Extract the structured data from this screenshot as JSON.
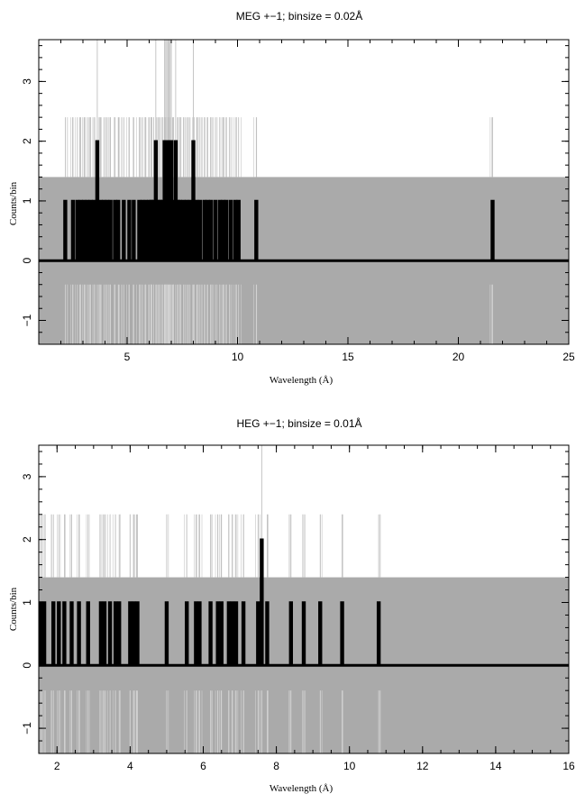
{
  "chart_data": [
    {
      "type": "line",
      "title": "MEG +−1; binsize = 0.02Å",
      "xlabel": "Wavelength (Å)",
      "ylabel": "Counts/bin",
      "xlim": [
        1.0,
        25.0
      ],
      "ylim": [
        -1.4,
        3.7
      ],
      "xticks": [
        5,
        10,
        15,
        20,
        25
      ],
      "yticks": [
        -1,
        0,
        1,
        2,
        3
      ],
      "ytick_labels": [
        "−1",
        "0",
        "1",
        "2",
        "3"
      ],
      "error_band": [
        -1.4,
        1.4
      ],
      "error_band_color": "#aaaaaa",
      "data_color": "#000000",
      "spikes": [
        {
          "x": 2.2,
          "y": 1
        },
        {
          "x": 2.55,
          "y": 1
        },
        {
          "x": 2.75,
          "y": 1
        },
        {
          "x": 2.9,
          "y": 1
        },
        {
          "x": 3.05,
          "y": 1
        },
        {
          "x": 3.2,
          "y": 1
        },
        {
          "x": 3.35,
          "y": 1
        },
        {
          "x": 3.5,
          "y": 1
        },
        {
          "x": 3.65,
          "y": 2
        },
        {
          "x": 3.8,
          "y": 1
        },
        {
          "x": 3.95,
          "y": 1
        },
        {
          "x": 4.1,
          "y": 1
        },
        {
          "x": 4.25,
          "y": 1
        },
        {
          "x": 4.45,
          "y": 1
        },
        {
          "x": 4.6,
          "y": 1
        },
        {
          "x": 4.85,
          "y": 1
        },
        {
          "x": 5.1,
          "y": 1
        },
        {
          "x": 5.3,
          "y": 1
        },
        {
          "x": 5.55,
          "y": 1
        },
        {
          "x": 5.7,
          "y": 1
        },
        {
          "x": 5.85,
          "y": 1
        },
        {
          "x": 6.0,
          "y": 1
        },
        {
          "x": 6.1,
          "y": 1
        },
        {
          "x": 6.2,
          "y": 1
        },
        {
          "x": 6.3,
          "y": 2
        },
        {
          "x": 6.4,
          "y": 1
        },
        {
          "x": 6.5,
          "y": 1
        },
        {
          "x": 6.6,
          "y": 1
        },
        {
          "x": 6.7,
          "y": 2
        },
        {
          "x": 6.75,
          "y": 2
        },
        {
          "x": 6.8,
          "y": 2
        },
        {
          "x": 6.85,
          "y": 2
        },
        {
          "x": 6.9,
          "y": 2
        },
        {
          "x": 6.95,
          "y": 2
        },
        {
          "x": 7.0,
          "y": 2
        },
        {
          "x": 7.1,
          "y": 1
        },
        {
          "x": 7.2,
          "y": 2
        },
        {
          "x": 7.3,
          "y": 1
        },
        {
          "x": 7.4,
          "y": 1
        },
        {
          "x": 7.55,
          "y": 1
        },
        {
          "x": 7.7,
          "y": 1
        },
        {
          "x": 7.85,
          "y": 1
        },
        {
          "x": 8.0,
          "y": 2
        },
        {
          "x": 8.15,
          "y": 1
        },
        {
          "x": 8.3,
          "y": 1
        },
        {
          "x": 8.5,
          "y": 1
        },
        {
          "x": 8.65,
          "y": 1
        },
        {
          "x": 8.8,
          "y": 1
        },
        {
          "x": 9.0,
          "y": 1
        },
        {
          "x": 9.2,
          "y": 1
        },
        {
          "x": 9.35,
          "y": 1
        },
        {
          "x": 9.5,
          "y": 1
        },
        {
          "x": 9.7,
          "y": 1
        },
        {
          "x": 9.9,
          "y": 1
        },
        {
          "x": 10.05,
          "y": 1
        },
        {
          "x": 10.85,
          "y": 1
        },
        {
          "x": 21.55,
          "y": 1
        }
      ]
    },
    {
      "type": "line",
      "title": "HEG +−1; binsize = 0.01Å",
      "xlabel": "Wavelength (Å)",
      "ylabel": "Counts/bin",
      "xlim": [
        1.5,
        16.0
      ],
      "ylim": [
        -1.4,
        3.5
      ],
      "xticks": [
        2,
        4,
        6,
        8,
        10,
        12,
        14,
        16
      ],
      "yticks": [
        -1,
        0,
        1,
        2,
        3
      ],
      "ytick_labels": [
        "−1",
        "0",
        "1",
        "2",
        "3"
      ],
      "error_band": [
        -1.4,
        1.4
      ],
      "error_band_color": "#aaaaaa",
      "data_color": "#000000",
      "spikes": [
        {
          "x": 1.55,
          "y": 1
        },
        {
          "x": 1.65,
          "y": 1
        },
        {
          "x": 1.9,
          "y": 1
        },
        {
          "x": 2.05,
          "y": 1
        },
        {
          "x": 2.2,
          "y": 1
        },
        {
          "x": 2.4,
          "y": 1
        },
        {
          "x": 2.6,
          "y": 1
        },
        {
          "x": 2.85,
          "y": 1
        },
        {
          "x": 3.2,
          "y": 1
        },
        {
          "x": 3.3,
          "y": 1
        },
        {
          "x": 3.45,
          "y": 1
        },
        {
          "x": 3.6,
          "y": 1
        },
        {
          "x": 3.7,
          "y": 1
        },
        {
          "x": 4.0,
          "y": 1
        },
        {
          "x": 4.1,
          "y": 1
        },
        {
          "x": 4.2,
          "y": 1
        },
        {
          "x": 5.0,
          "y": 1
        },
        {
          "x": 5.55,
          "y": 1
        },
        {
          "x": 5.8,
          "y": 1
        },
        {
          "x": 5.9,
          "y": 1
        },
        {
          "x": 6.2,
          "y": 1
        },
        {
          "x": 6.4,
          "y": 1
        },
        {
          "x": 6.5,
          "y": 1
        },
        {
          "x": 6.7,
          "y": 1
        },
        {
          "x": 6.8,
          "y": 1
        },
        {
          "x": 6.9,
          "y": 1
        },
        {
          "x": 7.1,
          "y": 1
        },
        {
          "x": 7.5,
          "y": 1
        },
        {
          "x": 7.6,
          "y": 2
        },
        {
          "x": 7.75,
          "y": 1
        },
        {
          "x": 8.4,
          "y": 1
        },
        {
          "x": 8.75,
          "y": 1
        },
        {
          "x": 9.2,
          "y": 1
        },
        {
          "x": 9.8,
          "y": 1
        },
        {
          "x": 10.8,
          "y": 1
        }
      ]
    }
  ]
}
